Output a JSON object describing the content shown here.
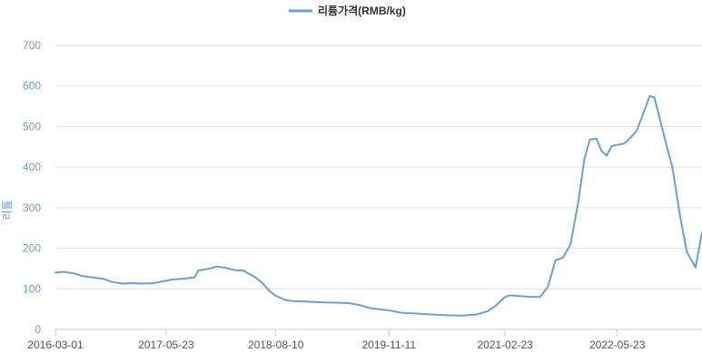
{
  "chart_data": {
    "type": "line",
    "legend_position": "top-center",
    "grid": true,
    "ylabel": "리튬",
    "ylim": [
      0,
      700
    ],
    "yticks": [
      "0",
      "100",
      "200",
      "300",
      "400",
      "500",
      "600",
      "700"
    ],
    "xrange": [
      "2016-03-01",
      "2023-05-01"
    ],
    "xticks": [
      "2016-03-01",
      "2017-05-23",
      "2018-08-10",
      "2019-11-11",
      "2021-02-23",
      "2022-05-23"
    ],
    "series": [
      {
        "name": "리튬가격(RMB/kg)",
        "color": "#6a9fd8",
        "points": [
          [
            "2016-03-01",
            140
          ],
          [
            "2016-04-01",
            142
          ],
          [
            "2016-05-15",
            138
          ],
          [
            "2016-06-15",
            132
          ],
          [
            "2016-08-01",
            128
          ],
          [
            "2016-09-15",
            124
          ],
          [
            "2016-10-15",
            117
          ],
          [
            "2016-12-01",
            113
          ],
          [
            "2017-01-01",
            114
          ],
          [
            "2017-02-15",
            113
          ],
          [
            "2017-04-01",
            114
          ],
          [
            "2017-05-23",
            120
          ],
          [
            "2017-06-15",
            123
          ],
          [
            "2017-08-01",
            125
          ],
          [
            "2017-09-15",
            128
          ],
          [
            "2017-10-01",
            145
          ],
          [
            "2017-11-15",
            150
          ],
          [
            "2017-12-15",
            155
          ],
          [
            "2018-01-15",
            152
          ],
          [
            "2018-03-01",
            146
          ],
          [
            "2018-04-01",
            145
          ],
          [
            "2018-04-15",
            140
          ],
          [
            "2018-05-15",
            130
          ],
          [
            "2018-06-15",
            115
          ],
          [
            "2018-07-15",
            95
          ],
          [
            "2018-08-10",
            83
          ],
          [
            "2018-09-15",
            73
          ],
          [
            "2018-10-15",
            70
          ],
          [
            "2018-12-01",
            69
          ],
          [
            "2019-02-01",
            67
          ],
          [
            "2019-04-01",
            66
          ],
          [
            "2019-06-01",
            65
          ],
          [
            "2019-07-15",
            60
          ],
          [
            "2019-09-01",
            52
          ],
          [
            "2019-11-11",
            47
          ],
          [
            "2020-01-01",
            41
          ],
          [
            "2020-03-01",
            39
          ],
          [
            "2020-05-01",
            37
          ],
          [
            "2020-07-01",
            35
          ],
          [
            "2020-09-01",
            34
          ],
          [
            "2020-11-01",
            37
          ],
          [
            "2020-12-15",
            45
          ],
          [
            "2021-01-15",
            58
          ],
          [
            "2021-02-23",
            80
          ],
          [
            "2021-03-15",
            84
          ],
          [
            "2021-05-01",
            82
          ],
          [
            "2021-06-15",
            80
          ],
          [
            "2021-07-15",
            80
          ],
          [
            "2021-08-15",
            105
          ],
          [
            "2021-09-15",
            170
          ],
          [
            "2021-10-15",
            177
          ],
          [
            "2021-11-15",
            210
          ],
          [
            "2021-12-15",
            310
          ],
          [
            "2022-01-10",
            420
          ],
          [
            "2022-02-01",
            468
          ],
          [
            "2022-02-28",
            470
          ],
          [
            "2022-03-20",
            440
          ],
          [
            "2022-04-10",
            428
          ],
          [
            "2022-05-01",
            452
          ],
          [
            "2022-05-23",
            455
          ],
          [
            "2022-06-20",
            458
          ],
          [
            "2022-07-15",
            472
          ],
          [
            "2022-08-10",
            490
          ],
          [
            "2022-09-10",
            540
          ],
          [
            "2022-10-01",
            575
          ],
          [
            "2022-10-20",
            572
          ],
          [
            "2022-11-15",
            510
          ],
          [
            "2022-12-10",
            450
          ],
          [
            "2023-01-01",
            400
          ],
          [
            "2023-02-01",
            280
          ],
          [
            "2023-03-01",
            190
          ],
          [
            "2023-04-05",
            153
          ],
          [
            "2023-05-01",
            240
          ]
        ]
      }
    ]
  }
}
